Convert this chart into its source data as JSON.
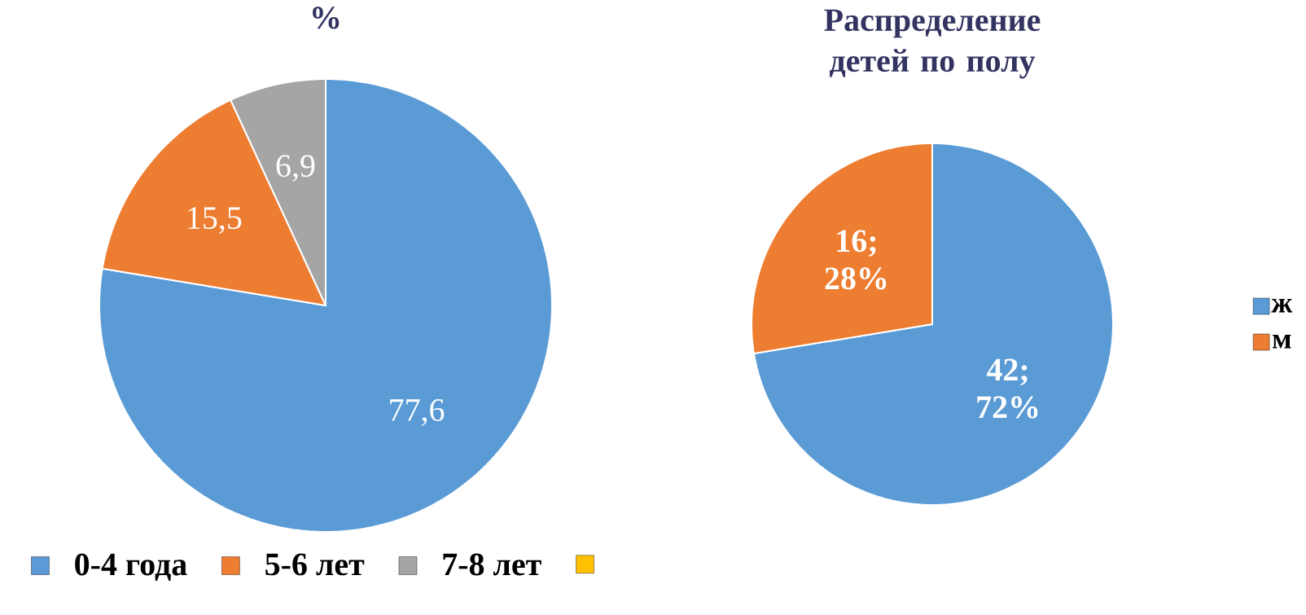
{
  "chart_data": [
    {
      "type": "pie",
      "title": "%",
      "categories": [
        "0-4 года",
        "5-6 лет",
        "7-8 лет",
        null
      ],
      "values": [
        77.6,
        15.5,
        6.9,
        0
      ],
      "colors": [
        "#5b9bd5",
        "#ed7d31",
        "#a5a5a5",
        "#ffc000"
      ],
      "value_labels": [
        "77,6",
        "15,5",
        "6,9",
        null
      ],
      "legend": "bottom"
    },
    {
      "type": "pie",
      "title": "Распределение детей по полу",
      "categories": [
        "ж",
        "м"
      ],
      "values": [
        42,
        16
      ],
      "colors": [
        "#5b9bd5",
        "#ed7d31"
      ],
      "value_labels": [
        "42; 72%",
        "16; 28%"
      ],
      "legend": "right"
    }
  ]
}
